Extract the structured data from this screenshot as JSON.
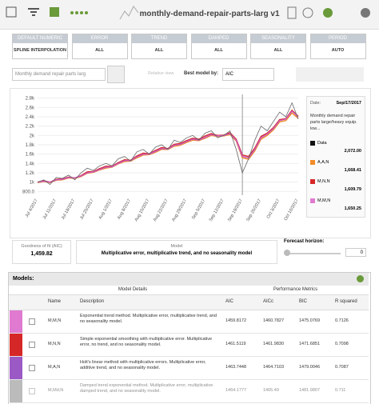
{
  "toolbar": {
    "title": "monthly-demand-repair-parts-larg v1"
  },
  "filters": [
    {
      "label": "DEFAULT NUMERIC",
      "value": "SPLINE INTERPOLATION"
    },
    {
      "label": "ERROR",
      "value": "ALL"
    },
    {
      "label": "TREND",
      "value": "ALL"
    },
    {
      "label": "DAMPED",
      "value": "ALL"
    },
    {
      "label": "SEASONALITY",
      "value": "ALL"
    },
    {
      "label": "PERIOD",
      "value": "AUTO"
    }
  ],
  "controls": {
    "field_select": "Monthly demand repair parts larg",
    "relative_view": "Relative view",
    "best_model_label": "Best model by:",
    "best_model_value": "AIC"
  },
  "chart_data": {
    "type": "line",
    "categories": [
      "Jul 4/2017",
      null,
      null,
      "Jul 11/2017",
      null,
      null,
      "Jul 18/2017",
      null,
      null,
      "Jul 25/2017",
      null,
      null,
      "Aug 1/2017",
      null,
      null,
      "Aug 8/2017",
      null,
      null,
      "Aug 15/2017",
      null,
      null,
      "Aug 22/2017",
      null,
      null,
      "Aug 29/2017",
      null,
      null,
      "Sep 5/2017",
      null,
      null,
      "Sep 12/2017",
      null,
      null,
      "Sep 19/2017",
      null,
      null,
      "Sep 26/2017",
      null,
      null,
      "Oct 3/2017",
      null,
      null,
      "Oct 10/2017"
    ],
    "series": [
      {
        "name": "Data",
        "color": "#666666",
        "values": [
          1000,
          1050,
          950,
          1100,
          1080,
          1150,
          1050,
          1200,
          1300,
          1250,
          1350,
          1400,
          1350,
          1500,
          1550,
          1450,
          1650,
          1700,
          1600,
          1750,
          1800,
          1700,
          1900,
          1850,
          1950,
          2000,
          1900,
          2050,
          2100,
          1950,
          2000,
          2100,
          1700,
          1200,
          1500,
          1900,
          2200,
          2100,
          2300,
          2500,
          2400,
          2700,
          2350
        ]
      },
      {
        "name": "A,A,N",
        "color": "#f28c28",
        "values": [
          990,
          1010,
          990,
          1040,
          1050,
          1090,
          1080,
          1120,
          1190,
          1210,
          1260,
          1300,
          1320,
          1390,
          1440,
          1450,
          1520,
          1580,
          1590,
          1640,
          1700,
          1700,
          1770,
          1790,
          1850,
          1900,
          1890,
          1940,
          2000,
          1980,
          1990,
          2020,
          1880,
          1520,
          1490,
          1670,
          1920,
          2000,
          2120,
          2290,
          2320,
          2480,
          2370
        ]
      },
      {
        "name": "M,N,N",
        "color": "#d62728",
        "values": [
          1000,
          1030,
          1000,
          1060,
          1070,
          1110,
          1090,
          1140,
          1220,
          1230,
          1290,
          1340,
          1340,
          1420,
          1480,
          1470,
          1560,
          1620,
          1610,
          1680,
          1740,
          1720,
          1810,
          1830,
          1890,
          1940,
          1920,
          1990,
          2040,
          2000,
          2010,
          2060,
          1920,
          1580,
          1550,
          1730,
          1980,
          2050,
          2170,
          2340,
          2360,
          2540,
          2410
        ]
      },
      {
        "name": "M,M,N",
        "color": "#c85bc0",
        "values": [
          1000,
          1020,
          1000,
          1050,
          1060,
          1100,
          1090,
          1130,
          1200,
          1220,
          1270,
          1320,
          1330,
          1400,
          1460,
          1460,
          1540,
          1600,
          1600,
          1660,
          1720,
          1710,
          1790,
          1810,
          1870,
          1920,
          1900,
          1960,
          2020,
          1990,
          2000,
          2040,
          1900,
          1550,
          1520,
          1700,
          1950,
          2030,
          2150,
          2320,
          2350,
          2520,
          2400
        ]
      }
    ],
    "ylim": [
      720,
      2880
    ],
    "yticks": [
      {
        "value": 2800,
        "label": "2.8k"
      },
      {
        "value": 2600,
        "label": "2.6k"
      },
      {
        "value": 2400,
        "label": "2.4k"
      },
      {
        "value": 2200,
        "label": "2.2k"
      },
      {
        "value": 2000,
        "label": "2k"
      },
      {
        "value": 1800,
        "label": "1.8k"
      },
      {
        "value": 1600,
        "label": "1.6k"
      },
      {
        "value": 1400,
        "label": "1.4k"
      },
      {
        "value": 1200,
        "label": "1.2k"
      },
      {
        "value": 1000,
        "label": "1k"
      },
      {
        "value": 800,
        "label": "800.0"
      }
    ],
    "grid": true
  },
  "tooltip": {
    "date_label": "Date:",
    "date": "Sep/17/2017",
    "description": "Monthly demand repair parts large/heavy equip. low...",
    "items": [
      {
        "name": "Data",
        "color": "#111111",
        "value": "2,072.00"
      },
      {
        "name": "A,A,N",
        "color": "#f28c28",
        "value": "1,668.41"
      },
      {
        "name": "M,N,N",
        "color": "#d62728",
        "value": "1,609.79"
      },
      {
        "name": "M,M,N",
        "color": "#e07ad0",
        "value": "1,650.25"
      }
    ]
  },
  "summary": {
    "fit_label": "Goodness of fit (AIC)",
    "fit_value": "1,459.82",
    "model_label": "Model",
    "model_value": "Multiplicative error, multiplicative trend, and no seasonality model",
    "horizon_label": "Forecast horizon:",
    "horizon_value": "0"
  },
  "models": {
    "title": "Models:",
    "group_details": "Model Details",
    "group_metrics": "Performance Metrics",
    "columns": [
      "Name",
      "Description",
      "AIC",
      "AICc",
      "BIC",
      "R squared"
    ],
    "rows": [
      {
        "color": "#e07ad0",
        "name": "M,M,N",
        "description": "Exponential trend method. Multiplicative error, multiplicative trend, and no seasonality model.",
        "aic": "1459.8172",
        "aicc": "1460.7827",
        "bic": "1475.0769",
        "r2": "0.7126"
      },
      {
        "color": "#d62728",
        "name": "M,N,N",
        "description": "Simple exponential smoothing with multiplicative error. Multiplicative error, no trend, and no seasonality model.",
        "aic": "1461.5119",
        "aicc": "1461.9830",
        "bic": "1471.6851",
        "r2": "0.7098"
      },
      {
        "color": "#9b59c6",
        "name": "M,A,N",
        "description": "Holt's linear method with multiplicative errors. Multiplicative error, additive trend, and no seasonality model.",
        "aic": "1463.7448",
        "aicc": "1464.7103",
        "bic": "1479.0046",
        "r2": "0.7087"
      },
      {
        "color": "#bbbbbb",
        "name": "M,Md,N",
        "description": "Damped trend exponential method. Multiplicative error, multiplicative damped trend, and no seasonality model.",
        "aic": "1464.1777",
        "aicc": "1465.49",
        "bic": "1481.9807",
        "r2": "0.711"
      }
    ]
  }
}
